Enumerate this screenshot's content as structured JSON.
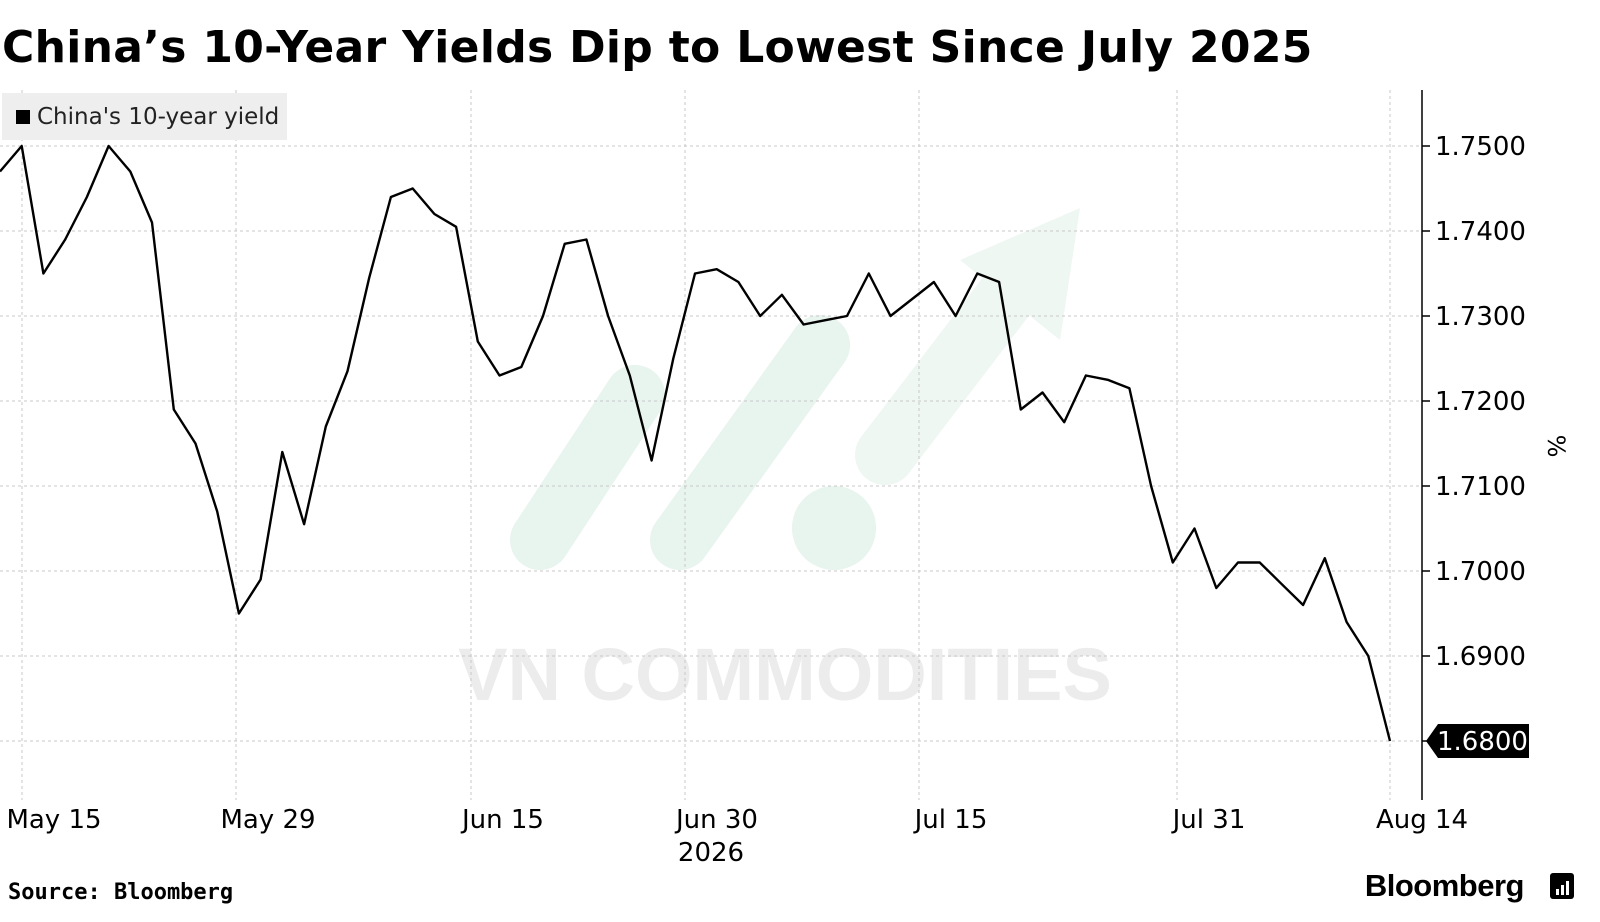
{
  "title": "China’s 10-Year Yields Dip to Lowest Since July 2025",
  "legend": {
    "label": "China's 10-year yield"
  },
  "footer": {
    "source": "Source: Bloomberg",
    "brand": "Bloomberg"
  },
  "watermark": {
    "text": "VN COMMODITIES"
  },
  "colors": {
    "line": "#000000",
    "grid": "#c8c8c8",
    "legend_bg": "#eeeeee",
    "watermark": "#e6f3ec"
  },
  "chart_data": {
    "type": "line",
    "title": "China’s 10-Year Yields Dip to Lowest Since July 2025",
    "ylabel": "%",
    "xlabel": "",
    "y_axis_side": "right",
    "grid": true,
    "legend_position": "top-left",
    "ylim": [
      1.6735,
      1.7568
    ],
    "y_ticks": [
      1.68,
      1.69,
      1.7,
      1.71,
      1.72,
      1.73,
      1.74,
      1.75
    ],
    "y_tick_labels": [
      "1.6800",
      "1.6900",
      "1.7000",
      "1.7100",
      "1.7200",
      "1.7300",
      "1.7400",
      "1.7500"
    ],
    "x_tick_labels": [
      "May 15",
      "May 29",
      "Jun 15",
      "Jun 30",
      "Jul 15",
      "Jul 31",
      "Aug 14"
    ],
    "x_tick_sublabel": {
      "under": "Jun 30",
      "text": "2026"
    },
    "last_value_label": "1.6800",
    "series": [
      {
        "name": "China's 10-year yield",
        "values": [
          1.747,
          1.75,
          1.735,
          1.739,
          1.744,
          1.75,
          1.747,
          1.741,
          1.719,
          1.715,
          1.707,
          1.695,
          1.699,
          1.714,
          1.7055,
          1.717,
          1.7235,
          1.7345,
          1.744,
          1.745,
          1.742,
          1.7405,
          1.727,
          1.723,
          1.724,
          1.73,
          1.7385,
          1.739,
          1.73,
          1.723,
          1.713,
          1.725,
          1.735,
          1.7355,
          1.734,
          1.73,
          1.7325,
          1.729,
          1.7295,
          1.73,
          1.735,
          1.73,
          1.732,
          1.734,
          1.73,
          1.735,
          1.734,
          1.719,
          1.721,
          1.7175,
          1.723,
          1.7225,
          1.7215,
          1.71,
          1.701,
          1.705,
          1.698,
          1.701,
          1.701,
          1.6985,
          1.696,
          1.7015,
          1.694,
          1.69,
          1.68
        ]
      }
    ]
  }
}
